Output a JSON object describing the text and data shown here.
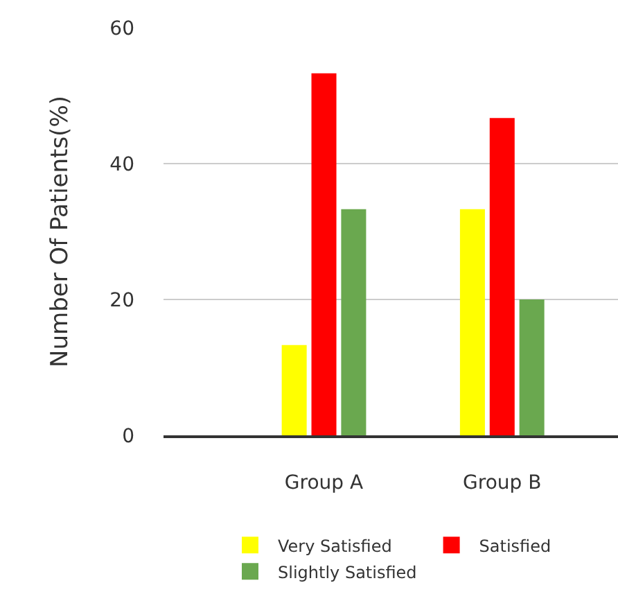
{
  "chart_data": {
    "type": "bar",
    "ylabel": "Number Of Patients(%)",
    "categories": [
      "Group A",
      "Group B"
    ],
    "series": [
      {
        "name": "Very Satisfied",
        "color": "#ffff00",
        "values": [
          13.3,
          33.3
        ]
      },
      {
        "name": "Satisfied",
        "color": "#ff0000",
        "values": [
          53.3,
          46.7
        ]
      },
      {
        "name": "Slightly Satisfied",
        "color": "#6aa84f",
        "values": [
          33.3,
          20
        ]
      }
    ],
    "ylim": [
      0,
      60
    ],
    "yticks": [
      0,
      20,
      40,
      60
    ],
    "grid": "y",
    "legend": "bottom"
  }
}
